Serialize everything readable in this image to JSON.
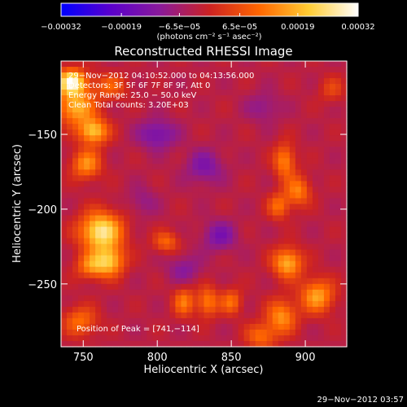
{
  "chart_data": {
    "type": "heatmap",
    "title": "Reconstructed RHESSI Image",
    "xlabel": "Heliocentric X (arcsec)",
    "ylabel": "Heliocentric Y (arcsec)",
    "xlim": [
      735,
      928
    ],
    "ylim": [
      -292,
      -101
    ],
    "x_ticks": [
      750,
      800,
      850,
      900
    ],
    "y_ticks": [
      -150,
      -200,
      -250
    ],
    "x_tick_labels": [
      "750",
      "800",
      "850",
      "900"
    ],
    "y_tick_labels": [
      "−150",
      "−200",
      "−250"
    ],
    "colorbar": {
      "range": [
        -0.00032,
        0.00032
      ],
      "tick_values": [
        -0.00032,
        -0.00019,
        -6.5e-05,
        6.5e-05,
        0.00019,
        0.00032
      ],
      "tick_labels": [
        "−0.00032",
        "−0.00019",
        "−6.5e−05",
        "6.5e−05",
        "0.00019",
        "0.00032"
      ],
      "unit_label": "(photons cm⁻² s⁻¹ asec⁻²)",
      "colors": [
        "#0000ff",
        "#5a00cc",
        "#8a1a9a",
        "#cc2222",
        "#ff6600",
        "#ffcc33",
        "#ffffff"
      ]
    },
    "annotations": [
      "29−Nov−2012 04:10:52.000 to 04:13:56.000",
      "Detectors: 3F 5F 6F 7F 8F 9F, Att 0",
      "Energy Range: 25.0 − 50.0 keV",
      "Clean  Total counts: 3.20E+03",
      "Position of Peak = [741,−114]"
    ],
    "peak_position": [
      741,
      -114
    ],
    "timestamp": "29−Nov−2012 03:57",
    "grid": false,
    "emission_sources": [
      {
        "x": 742,
        "y": -115,
        "value": 0.00032,
        "sx": 7,
        "sy": 6
      },
      {
        "x": 745,
        "y": -132,
        "value": 0.00022,
        "sx": 9,
        "sy": 8
      },
      {
        "x": 757,
        "y": -148,
        "value": 0.00024,
        "sx": 7,
        "sy": 6
      },
      {
        "x": 752,
        "y": -170,
        "value": 0.00018,
        "sx": 7,
        "sy": 7
      },
      {
        "x": 768,
        "y": -118,
        "value": 0.00012,
        "sx": 8,
        "sy": 6
      },
      {
        "x": 762,
        "y": -215,
        "value": 0.0003,
        "sx": 10,
        "sy": 9
      },
      {
        "x": 768,
        "y": -235,
        "value": 0.00022,
        "sx": 7,
        "sy": 7
      },
      {
        "x": 755,
        "y": -238,
        "value": 0.00016,
        "sx": 7,
        "sy": 6
      },
      {
        "x": 748,
        "y": -275,
        "value": 0.00014,
        "sx": 8,
        "sy": 7
      },
      {
        "x": 806,
        "y": -222,
        "value": 0.00013,
        "sx": 6,
        "sy": 5
      },
      {
        "x": 818,
        "y": -262,
        "value": 0.00015,
        "sx": 5,
        "sy": 7
      },
      {
        "x": 834,
        "y": -262,
        "value": 0.00016,
        "sx": 5,
        "sy": 7
      },
      {
        "x": 850,
        "y": -262,
        "value": 0.00014,
        "sx": 5,
        "sy": 6
      },
      {
        "x": 886,
        "y": -168,
        "value": 0.00017,
        "sx": 5,
        "sy": 8
      },
      {
        "x": 895,
        "y": -188,
        "value": 0.00016,
        "sx": 6,
        "sy": 7
      },
      {
        "x": 882,
        "y": -198,
        "value": 0.00014,
        "sx": 5,
        "sy": 6
      },
      {
        "x": 888,
        "y": -236,
        "value": 0.00022,
        "sx": 7,
        "sy": 7
      },
      {
        "x": 908,
        "y": -258,
        "value": 0.0002,
        "sx": 8,
        "sy": 8
      },
      {
        "x": 884,
        "y": -272,
        "value": 0.00018,
        "sx": 7,
        "sy": 8
      },
      {
        "x": 870,
        "y": -285,
        "value": 0.00014,
        "sx": 7,
        "sy": 6
      },
      {
        "x": 918,
        "y": -120,
        "value": 8e-05,
        "sx": 6,
        "sy": 6
      },
      {
        "x": 800,
        "y": -150,
        "value": -0.00012,
        "sx": 9,
        "sy": 7
      },
      {
        "x": 832,
        "y": -172,
        "value": -0.0001,
        "sx": 9,
        "sy": 8
      },
      {
        "x": 842,
        "y": -218,
        "value": -0.00011,
        "sx": 8,
        "sy": 7
      },
      {
        "x": 818,
        "y": -240,
        "value": -8e-05,
        "sx": 8,
        "sy": 7
      },
      {
        "x": 872,
        "y": -132,
        "value": -7e-05,
        "sx": 8,
        "sy": 7
      },
      {
        "x": 790,
        "y": -195,
        "value": -6e-05,
        "sx": 7,
        "sy": 7
      }
    ]
  }
}
